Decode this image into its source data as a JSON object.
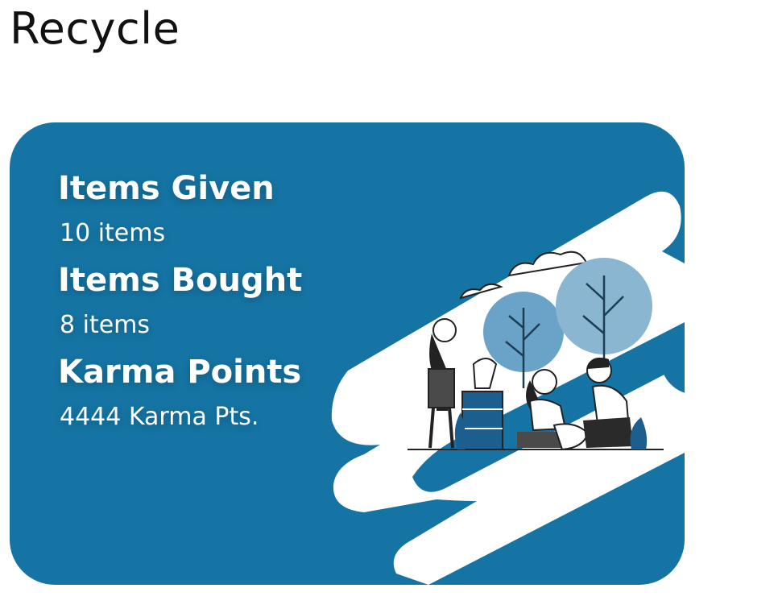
{
  "page": {
    "title": "Recycle"
  },
  "stats": [
    {
      "label": "Items Given",
      "value": "10 items"
    },
    {
      "label": "Items Bought",
      "value": "8 items"
    },
    {
      "label": "Karma Points",
      "value": "4444 Karma Pts."
    }
  ],
  "colors": {
    "card_background": "#1574a3",
    "tree_light": "#8ab6d1",
    "tree_mid": "#6aa3c8",
    "accent_dark": "#1c5f8f"
  },
  "illustration": {
    "icon": "recycling-volunteers-illustration"
  }
}
